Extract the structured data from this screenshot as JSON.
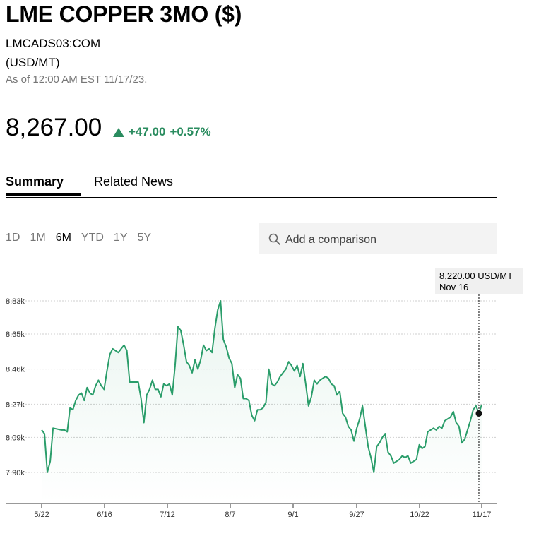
{
  "header": {
    "title": "LME COPPER 3MO ($)",
    "ticker": "LMCADS03:COM",
    "unit": "(USD/MT)",
    "as_of": "As of 12:00 AM EST 11/17/23."
  },
  "quote": {
    "price": "8,267.00",
    "change": "+47.00",
    "change_pct": "+0.57%",
    "direction": "up",
    "up_color": "#2a8c5f"
  },
  "tabs": [
    {
      "label": "Summary",
      "active": true
    },
    {
      "label": "Related News",
      "active": false
    }
  ],
  "ranges": [
    {
      "label": "1D",
      "active": false
    },
    {
      "label": "1M",
      "active": false
    },
    {
      "label": "6M",
      "active": true
    },
    {
      "label": "YTD",
      "active": false
    },
    {
      "label": "1Y",
      "active": false
    },
    {
      "label": "5Y",
      "active": false
    }
  ],
  "comparison": {
    "placeholder": "Add a comparison",
    "icon": "search-icon"
  },
  "tooltip": {
    "value": "8,220.00 USD/MT",
    "date": "Nov 16"
  },
  "chart_data": {
    "type": "line",
    "color": "#2a9d6a",
    "grid": "dotted horizontal",
    "y_ticks": [
      "8.83k",
      "8.65k",
      "8.46k",
      "8.27k",
      "8.09k",
      "7.90k"
    ],
    "y_tick_values": [
      8830,
      8650,
      8460,
      8270,
      8090,
      7900
    ],
    "x_ticks": [
      "5/22",
      "6/16",
      "7/12",
      "8/7",
      "9/1",
      "9/27",
      "10/22",
      "11/17"
    ],
    "ylim": [
      7900,
      8830
    ],
    "x_range_days": [
      0,
      179
    ],
    "series": [
      {
        "values": [
          [
            0,
            8130
          ],
          [
            1,
            8110
          ],
          [
            2,
            7900
          ],
          [
            3,
            7960
          ],
          [
            4,
            8140
          ],
          [
            7,
            8130
          ],
          [
            8,
            8130
          ],
          [
            9,
            8120
          ],
          [
            10,
            8250
          ],
          [
            11,
            8240
          ],
          [
            12,
            8290
          ],
          [
            13,
            8320
          ],
          [
            14,
            8330
          ],
          [
            15,
            8290
          ],
          [
            16,
            8360
          ],
          [
            17,
            8330
          ],
          [
            18,
            8320
          ],
          [
            19,
            8370
          ],
          [
            20,
            8400
          ],
          [
            21,
            8370
          ],
          [
            22,
            8350
          ],
          [
            23,
            8450
          ],
          [
            24,
            8540
          ],
          [
            25,
            8570
          ],
          [
            26,
            8560
          ],
          [
            27,
            8550
          ],
          [
            28,
            8570
          ],
          [
            29,
            8590
          ],
          [
            30,
            8560
          ],
          [
            31,
            8390
          ],
          [
            34,
            8390
          ],
          [
            35,
            8300
          ],
          [
            36,
            8170
          ],
          [
            37,
            8320
          ],
          [
            38,
            8350
          ],
          [
            39,
            8400
          ],
          [
            40,
            8350
          ],
          [
            41,
            8350
          ],
          [
            42,
            8310
          ],
          [
            43,
            8380
          ],
          [
            44,
            8370
          ],
          [
            45,
            8380
          ],
          [
            46,
            8320
          ],
          [
            47,
            8480
          ],
          [
            48,
            8690
          ],
          [
            49,
            8670
          ],
          [
            50,
            8590
          ],
          [
            51,
            8500
          ],
          [
            52,
            8480
          ],
          [
            53,
            8440
          ],
          [
            54,
            8510
          ],
          [
            55,
            8460
          ],
          [
            56,
            8510
          ],
          [
            57,
            8590
          ],
          [
            58,
            8560
          ],
          [
            59,
            8570
          ],
          [
            60,
            8550
          ],
          [
            61,
            8680
          ],
          [
            62,
            8780
          ],
          [
            63,
            8830
          ],
          [
            64,
            8620
          ],
          [
            65,
            8580
          ],
          [
            66,
            8520
          ],
          [
            67,
            8490
          ],
          [
            68,
            8360
          ],
          [
            69,
            8430
          ],
          [
            70,
            8410
          ],
          [
            71,
            8300
          ],
          [
            72,
            8300
          ],
          [
            73,
            8290
          ],
          [
            74,
            8210
          ],
          [
            75,
            8180
          ],
          [
            76,
            8240
          ],
          [
            77,
            8240
          ],
          [
            78,
            8250
          ],
          [
            79,
            8280
          ],
          [
            80,
            8460
          ],
          [
            81,
            8380
          ],
          [
            82,
            8370
          ],
          [
            83,
            8390
          ],
          [
            84,
            8420
          ],
          [
            85,
            8440
          ],
          [
            86,
            8460
          ],
          [
            87,
            8500
          ],
          [
            88,
            8480
          ],
          [
            89,
            8450
          ],
          [
            90,
            8480
          ],
          [
            91,
            8420
          ],
          [
            92,
            8490
          ],
          [
            93,
            8380
          ],
          [
            94,
            8260
          ],
          [
            95,
            8310
          ],
          [
            96,
            8400
          ],
          [
            97,
            8380
          ],
          [
            98,
            8400
          ],
          [
            99,
            8410
          ],
          [
            100,
            8420
          ],
          [
            101,
            8410
          ],
          [
            102,
            8380
          ],
          [
            103,
            8370
          ],
          [
            104,
            8320
          ],
          [
            105,
            8340
          ],
          [
            106,
            8220
          ],
          [
            107,
            8200
          ],
          [
            108,
            8150
          ],
          [
            109,
            8130
          ],
          [
            110,
            8070
          ],
          [
            111,
            8140
          ],
          [
            112,
            8190
          ],
          [
            113,
            8260
          ],
          [
            114,
            8150
          ],
          [
            115,
            8040
          ],
          [
            116,
            7980
          ],
          [
            117,
            7900
          ],
          [
            118,
            8040
          ],
          [
            119,
            8060
          ],
          [
            120,
            8090
          ],
          [
            121,
            8110
          ],
          [
            122,
            8010
          ],
          [
            123,
            7990
          ],
          [
            124,
            7950
          ],
          [
            125,
            7960
          ],
          [
            126,
            7970
          ],
          [
            127,
            7990
          ],
          [
            128,
            7980
          ],
          [
            129,
            7990
          ],
          [
            130,
            7950
          ],
          [
            131,
            7960
          ],
          [
            132,
            7970
          ],
          [
            133,
            8050
          ],
          [
            134,
            8030
          ],
          [
            135,
            8040
          ],
          [
            136,
            8120
          ],
          [
            137,
            8130
          ],
          [
            138,
            8140
          ],
          [
            139,
            8130
          ],
          [
            140,
            8150
          ],
          [
            141,
            8140
          ],
          [
            142,
            8180
          ],
          [
            143,
            8190
          ],
          [
            144,
            8200
          ],
          [
            145,
            8230
          ],
          [
            146,
            8170
          ],
          [
            147,
            8150
          ],
          [
            148,
            8060
          ],
          [
            149,
            8080
          ],
          [
            150,
            8130
          ],
          [
            151,
            8180
          ],
          [
            152,
            8240
          ],
          [
            153,
            8260
          ],
          [
            154,
            8220
          ],
          [
            155,
            8267
          ]
        ]
      }
    ],
    "marker": {
      "x": 154,
      "y": 8220
    }
  }
}
